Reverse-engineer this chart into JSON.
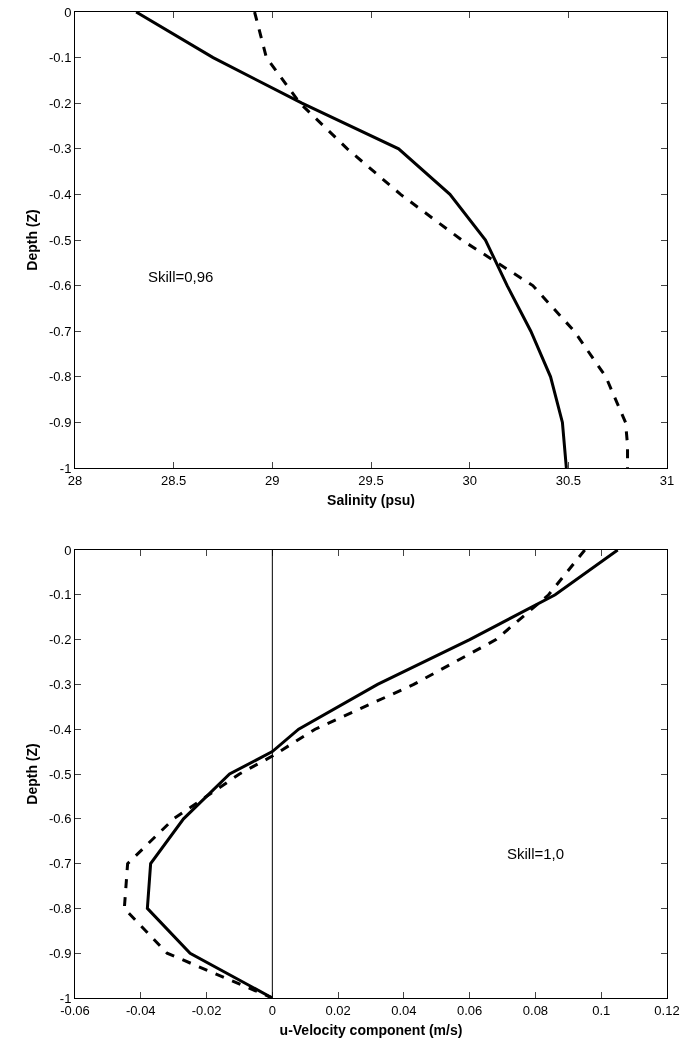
{
  "chart_data": [
    {
      "type": "line",
      "xlabel": "Salinity (psu)",
      "ylabel": "Depth (Z)",
      "xlim": [
        28,
        31
      ],
      "xticks": [
        28,
        28.5,
        29,
        29.5,
        30,
        30.5,
        31
      ],
      "ylim": [
        -1,
        0
      ],
      "yticks": [
        -1,
        -0.9,
        -0.8,
        -0.7,
        -0.6,
        -0.5,
        -0.4,
        -0.3,
        -0.2,
        -0.1,
        0
      ],
      "grid": false,
      "marker": "none",
      "annotations": [
        "Skill=0,96"
      ],
      "series": [
        {
          "color": "#000000",
          "line_style": "solid",
          "x": [
            28.31,
            28.7,
            29.15,
            29.64,
            29.9,
            30.08,
            30.19,
            30.31,
            30.41,
            30.47,
            30.49
          ],
          "values": [
            0,
            -0.1,
            -0.2,
            -0.3,
            -0.4,
            -0.5,
            -0.6,
            -0.7,
            -0.8,
            -0.9,
            -1
          ]
        },
        {
          "color": "#000000",
          "line_style": "dashed",
          "x": [
            28.91,
            28.97,
            29.14,
            29.38,
            29.65,
            29.96,
            30.32,
            30.53,
            30.69,
            30.79,
            30.8,
            30.8
          ],
          "values": [
            0,
            -0.1,
            -0.2,
            -0.3,
            -0.4,
            -0.5,
            -0.6,
            -0.7,
            -0.8,
            -0.9,
            -0.95,
            -1
          ]
        }
      ]
    },
    {
      "type": "line",
      "xlabel": "u-Velocity component (m/s)",
      "ylabel": "Depth (Z)",
      "xlim": [
        -0.06,
        0.12
      ],
      "xticks": [
        -0.06,
        -0.04,
        -0.02,
        0,
        0.02,
        0.04,
        0.06,
        0.08,
        0.1,
        0.12
      ],
      "ylim": [
        -1,
        0
      ],
      "yticks": [
        -1,
        -0.9,
        -0.8,
        -0.7,
        -0.6,
        -0.5,
        -0.4,
        -0.3,
        -0.2,
        -0.1,
        0
      ],
      "grid": false,
      "marker": "none",
      "annotations": [
        "Skill=1,0"
      ],
      "ref_lines": [
        {
          "axis": "x",
          "value": 0,
          "color": "#000000",
          "line_style": "solid"
        }
      ],
      "series": [
        {
          "color": "#000000",
          "line_style": "solid",
          "x": [
            0.105,
            0.086,
            0.06,
            0.032,
            0.008,
            0,
            -0.013,
            -0.027,
            -0.037,
            -0.038,
            -0.025,
            0
          ],
          "values": [
            0,
            -0.1,
            -0.2,
            -0.3,
            -0.4,
            -0.45,
            -0.5,
            -0.6,
            -0.7,
            -0.8,
            -0.9,
            -1
          ]
        },
        {
          "color": "#000000",
          "line_style": "dashed",
          "x": [
            0.095,
            0.084,
            0.068,
            0.043,
            0.013,
            0,
            -0.01,
            -0.03,
            -0.044,
            -0.045,
            -0.032,
            0
          ],
          "values": [
            0,
            -0.1,
            -0.2,
            -0.3,
            -0.4,
            -0.46,
            -0.5,
            -0.6,
            -0.7,
            -0.8,
            -0.9,
            -1
          ]
        }
      ]
    }
  ]
}
